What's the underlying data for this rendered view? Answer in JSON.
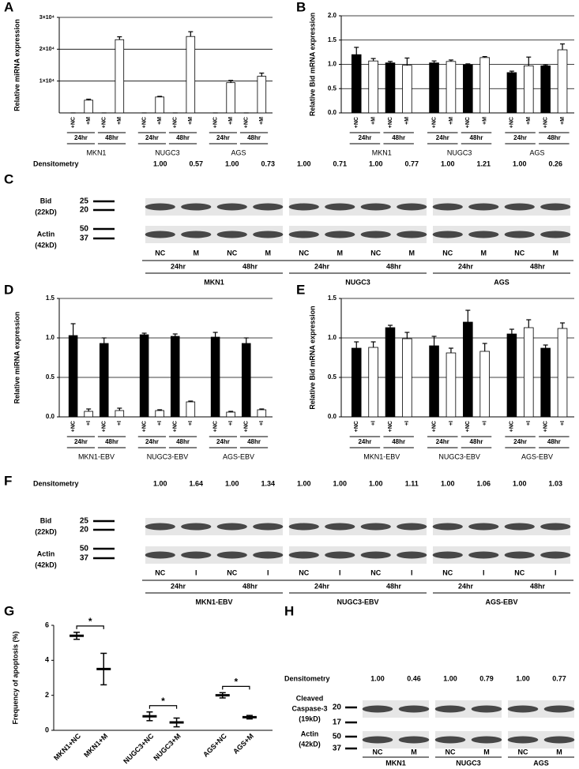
{
  "chart_data": [
    {
      "type": "bar",
      "panel": "A",
      "ylabel": "Relative miRNA expression",
      "categories": [
        "+NC",
        "+M",
        "+NC",
        "+M",
        "+NC",
        "+M",
        "+NC",
        "+M",
        "+NC",
        "+M",
        "+NC",
        "+M"
      ],
      "values": [
        1,
        4000,
        1,
        23000,
        1,
        5000,
        1,
        24000,
        1,
        9500,
        1,
        11500
      ],
      "errors": [
        0,
        300,
        0,
        900,
        0,
        200,
        0,
        1500,
        0,
        700,
        0,
        1000
      ],
      "colors": [
        "#ffffff",
        "#ffffff",
        "#ffffff",
        "#ffffff",
        "#ffffff",
        "#ffffff",
        "#ffffff",
        "#ffffff",
        "#ffffff",
        "#ffffff",
        "#ffffff",
        "#ffffff"
      ],
      "ylim": [
        0,
        30000
      ],
      "yticks": [
        {
          "value": 10000,
          "label": "1×10⁴"
        },
        {
          "value": 20000,
          "label": "2×10⁴"
        },
        {
          "value": 30000,
          "label": "3×10⁴"
        }
      ],
      "grid": true,
      "time_groups": [
        "24hr",
        "48hr",
        "24hr",
        "48hr",
        "24hr",
        "48hr"
      ],
      "groups": [
        "MKN1",
        "NUGC3",
        "AGS"
      ]
    },
    {
      "type": "bar",
      "panel": "B",
      "ylabel": "Relative Bid mRNA expression",
      "categories": [
        "+NC",
        "+M",
        "+NC",
        "+M",
        "+NC",
        "+M",
        "+NC",
        "+M",
        "+NC",
        "+M",
        "+NC",
        "+M"
      ],
      "values": [
        1.2,
        1.07,
        1.03,
        0.98,
        1.03,
        1.06,
        0.99,
        1.14,
        0.83,
        0.97,
        0.97,
        1.3
      ],
      "errors": [
        0.15,
        0.05,
        0.03,
        0.15,
        0.04,
        0.03,
        0.02,
        0.02,
        0.03,
        0.18,
        0.02,
        0.12
      ],
      "colors": [
        "#000000",
        "#ffffff",
        "#000000",
        "#ffffff",
        "#000000",
        "#ffffff",
        "#000000",
        "#ffffff",
        "#000000",
        "#ffffff",
        "#000000",
        "#ffffff"
      ],
      "ylim": [
        0,
        2
      ],
      "yticks": [
        {
          "value": 0,
          "label": "0.0"
        },
        0.5,
        {
          "value": 1,
          "label": "1.0"
        },
        1.5,
        {
          "value": 2,
          "label": "2.0"
        }
      ],
      "grid": true,
      "time_groups": [
        "24hr",
        "48hr",
        "24hr",
        "48hr",
        "24hr",
        "48hr"
      ],
      "groups": [
        "MKN1",
        "NUGC3",
        "AGS"
      ]
    },
    {
      "type": "bar",
      "panel": "D",
      "ylabel": "Relative miRNA expression",
      "categories": [
        "+NC",
        "+I",
        "+NC",
        "+I",
        "+NC",
        "+I",
        "+NC",
        "+I",
        "+NC",
        "+I",
        "+NC",
        "+I"
      ],
      "values": [
        1.03,
        0.07,
        0.93,
        0.08,
        1.04,
        0.08,
        1.02,
        0.19,
        1.01,
        0.06,
        0.93,
        0.09
      ],
      "errors": [
        0.15,
        0.03,
        0.07,
        0.03,
        0.02,
        0.01,
        0.03,
        0.01,
        0.06,
        0.01,
        0.07,
        0.01
      ],
      "colors": [
        "#000000",
        "#ffffff",
        "#000000",
        "#ffffff",
        "#000000",
        "#ffffff",
        "#000000",
        "#ffffff",
        "#000000",
        "#ffffff",
        "#000000",
        "#ffffff"
      ],
      "ylim": [
        0,
        1.5
      ],
      "yticks": [
        {
          "value": 0,
          "label": "0.0"
        },
        0.5,
        {
          "value": 1,
          "label": "1.0"
        },
        1.5
      ],
      "grid": true,
      "time_groups": [
        "24hr",
        "48hr",
        "24hr",
        "48hr",
        "24hr",
        "48hr"
      ],
      "groups": [
        "MKN1-EBV",
        "NUGC3-EBV",
        "AGS-EBV"
      ]
    },
    {
      "type": "bar",
      "panel": "E",
      "ylabel": "Relative Bid mRNA expression",
      "categories": [
        "+NC",
        "+I",
        "+NC",
        "+I",
        "+NC",
        "+I",
        "+NC",
        "+I",
        "+NC",
        "+I",
        "+NC",
        "+I"
      ],
      "values": [
        0.87,
        0.88,
        1.13,
        0.99,
        0.9,
        0.81,
        1.2,
        0.83,
        1.05,
        1.13,
        0.87,
        1.12
      ],
      "errors": [
        0.08,
        0.07,
        0.03,
        0.08,
        0.12,
        0.06,
        0.15,
        0.1,
        0.06,
        0.1,
        0.04,
        0.07
      ],
      "colors": [
        "#000000",
        "#ffffff",
        "#000000",
        "#ffffff",
        "#000000",
        "#ffffff",
        "#000000",
        "#ffffff",
        "#000000",
        "#ffffff",
        "#000000",
        "#ffffff"
      ],
      "ylim": [
        0,
        1.5
      ],
      "yticks": [
        {
          "value": 0,
          "label": "0.0"
        },
        0.5,
        {
          "value": 1,
          "label": "1.0"
        },
        1.5
      ],
      "grid": true,
      "time_groups": [
        "24hr",
        "48hr",
        "24hr",
        "48hr",
        "24hr",
        "48hr"
      ],
      "groups": [
        "MKN1-EBV",
        "NUGC3-EBV",
        "AGS-EBV"
      ]
    },
    {
      "type": "errorbar",
      "panel": "G",
      "ylabel": "Frequency of apoptosis (%)",
      "categories": [
        "MKN1+NC",
        "MKN1+M",
        "NUGC3+NC",
        "NUGC3+M",
        "AGS+NC",
        "AGS+M"
      ],
      "values": [
        5.4,
        3.5,
        0.8,
        0.45,
        2.0,
        0.75
      ],
      "errors": [
        0.2,
        0.9,
        0.25,
        0.25,
        0.15,
        0.1
      ],
      "significance": [
        "*",
        "*",
        "*"
      ],
      "ylim": [
        0,
        6
      ],
      "yticks": [
        0,
        2,
        4,
        6
      ]
    }
  ],
  "blots": [
    {
      "panel": "C",
      "densitometry_label": "Densitometry",
      "densitometry": [
        "1.00",
        "0.57",
        "1.00",
        "0.73",
        "1.00",
        "0.71",
        "1.00",
        "0.77",
        "1.00",
        "1.21",
        "1.00",
        "0.26"
      ],
      "rows": [
        {
          "label_lines": [
            "Bid",
            "(22kD)"
          ],
          "markers": [
            "25",
            "20"
          ]
        },
        {
          "label_lines": [
            "Actin",
            "(42kD)"
          ],
          "markers": [
            "50",
            "37"
          ]
        }
      ],
      "lanes": [
        "NC",
        "M",
        "NC",
        "M",
        "NC",
        "M",
        "NC",
        "M",
        "NC",
        "M",
        "NC",
        "M"
      ],
      "time_groups": [
        "24hr",
        "48hr",
        "24hr",
        "48hr",
        "24hr",
        "48hr"
      ],
      "groups": [
        "MKN1",
        "NUGC3",
        "AGS"
      ]
    },
    {
      "panel": "F",
      "densitometry_label": "Densitometry",
      "densitometry": [
        "1.00",
        "1.64",
        "1.00",
        "1.34",
        "1.00",
        "1.00",
        "1.00",
        "1.11",
        "1.00",
        "1.06",
        "1.00",
        "1.03"
      ],
      "rows": [
        {
          "label_lines": [
            "Bid",
            "(22kD)"
          ],
          "markers": [
            "25",
            "20"
          ]
        },
        {
          "label_lines": [
            "Actin",
            "(42kD)"
          ],
          "markers": [
            "50",
            "37"
          ]
        }
      ],
      "lanes": [
        "NC",
        "I",
        "NC",
        "I",
        "NC",
        "I",
        "NC",
        "I",
        "NC",
        "I",
        "NC",
        "I"
      ],
      "time_groups": [
        "24hr",
        "48hr",
        "24hr",
        "48hr",
        "24hr",
        "48hr"
      ],
      "groups": [
        "MKN1-EBV",
        "NUGC3-EBV",
        "AGS-EBV"
      ]
    },
    {
      "panel": "H",
      "densitometry_label": "Densitometry",
      "densitometry": [
        "1.00",
        "0.46",
        "1.00",
        "0.79",
        "1.00",
        "0.77"
      ],
      "rows": [
        {
          "label_lines": [
            "Cleaved",
            "Caspase-3",
            "(19kD)"
          ],
          "markers": [
            "20",
            "17"
          ]
        },
        {
          "label_lines": [
            "Actin",
            "(42kD)"
          ],
          "markers": [
            "50",
            "37"
          ]
        }
      ],
      "lanes": [
        "NC",
        "M",
        "NC",
        "M",
        "NC",
        "M"
      ],
      "groups": [
        "MKN1",
        "NUGC3",
        "AGS"
      ]
    }
  ]
}
